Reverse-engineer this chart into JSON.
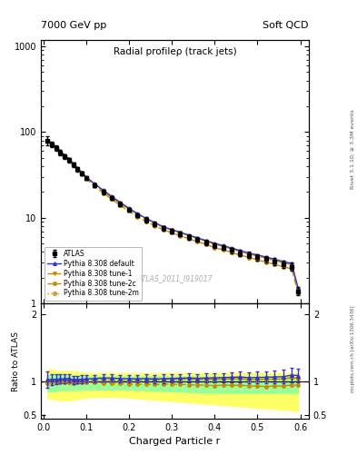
{
  "title_left": "7000 GeV pp",
  "title_right": "Soft QCD",
  "main_title": "Radial profileρ (track jets)",
  "xlabel": "Charged Particle r",
  "ylabel_ratio": "Ratio to ATLAS",
  "right_label_main": "Rivet 3.1.10; ≥ 3.3M events",
  "atlas_ref": "mcplots.cern.ch [arXiv:1306.3436]",
  "watermark": "ATLAS_2011_I919017",
  "x_data": [
    0.01,
    0.02,
    0.03,
    0.04,
    0.05,
    0.06,
    0.07,
    0.08,
    0.09,
    0.1,
    0.12,
    0.14,
    0.16,
    0.18,
    0.2,
    0.22,
    0.24,
    0.26,
    0.28,
    0.3,
    0.32,
    0.34,
    0.36,
    0.38,
    0.4,
    0.42,
    0.44,
    0.46,
    0.48,
    0.5,
    0.52,
    0.54,
    0.56,
    0.58,
    0.595
  ],
  "atlas_y": [
    80,
    72,
    65,
    58,
    52,
    47,
    42,
    37,
    33,
    29,
    24,
    20,
    17,
    14.5,
    12.5,
    10.8,
    9.5,
    8.5,
    7.6,
    7.0,
    6.5,
    6.0,
    5.6,
    5.2,
    4.8,
    4.5,
    4.2,
    3.9,
    3.7,
    3.5,
    3.3,
    3.1,
    2.9,
    2.7,
    1.4
  ],
  "atlas_yerr": [
    10,
    6,
    5,
    4,
    3.5,
    3,
    2.5,
    2,
    2,
    1.5,
    1.2,
    1.0,
    0.9,
    0.8,
    0.7,
    0.6,
    0.6,
    0.5,
    0.5,
    0.4,
    0.4,
    0.4,
    0.35,
    0.35,
    0.3,
    0.3,
    0.3,
    0.3,
    0.3,
    0.3,
    0.3,
    0.3,
    0.3,
    0.3,
    0.15
  ],
  "py_default_y": [
    82,
    74,
    67,
    60,
    54,
    49,
    43,
    38,
    34,
    30,
    25,
    21,
    17.8,
    15.1,
    13.0,
    11.2,
    9.9,
    8.8,
    7.9,
    7.3,
    6.8,
    6.3,
    5.85,
    5.45,
    5.05,
    4.75,
    4.45,
    4.15,
    3.9,
    3.7,
    3.5,
    3.3,
    3.1,
    2.95,
    1.52
  ],
  "py_tune1_y": [
    79,
    72,
    65,
    58,
    52.5,
    47.5,
    42.5,
    37.5,
    33.5,
    29.5,
    24.5,
    20.5,
    17.3,
    14.7,
    12.7,
    11.0,
    9.7,
    8.7,
    7.8,
    7.2,
    6.7,
    6.2,
    5.75,
    5.35,
    4.95,
    4.65,
    4.35,
    4.05,
    3.8,
    3.6,
    3.4,
    3.2,
    3.0,
    2.85,
    1.46
  ],
  "py_tune2c_y": [
    78,
    71,
    64,
    57,
    51,
    46,
    41,
    36.5,
    32.5,
    28.5,
    23.5,
    19.5,
    16.5,
    14.0,
    12.0,
    10.3,
    9.1,
    8.1,
    7.3,
    6.7,
    6.2,
    5.7,
    5.3,
    4.9,
    4.5,
    4.25,
    3.95,
    3.68,
    3.45,
    3.25,
    3.05,
    2.88,
    2.7,
    2.55,
    1.32
  ],
  "py_tune2m_y": [
    80,
    72.5,
    65.5,
    58.5,
    52.5,
    47.5,
    42.5,
    37.5,
    33.5,
    29.5,
    24.5,
    20.5,
    17.3,
    14.7,
    12.7,
    11.0,
    9.7,
    8.7,
    7.8,
    7.2,
    6.7,
    6.2,
    5.75,
    5.35,
    4.95,
    4.65,
    4.35,
    4.05,
    3.8,
    3.6,
    3.4,
    3.2,
    3.0,
    2.85,
    1.46
  ],
  "color_atlas": "#000000",
  "color_default": "#3333cc",
  "color_tune1": "#cc8800",
  "color_tune2c": "#cc8800",
  "color_tune2m": "#cc8800",
  "color_yellow": "#ffff66",
  "color_green": "#99ff99",
  "band_yellow_lo": [
    0.75,
    0.74,
    0.73,
    0.72,
    0.72,
    0.72,
    0.73,
    0.74,
    0.75,
    0.76,
    0.77,
    0.77,
    0.77,
    0.77,
    0.76,
    0.75,
    0.74,
    0.73,
    0.72,
    0.71,
    0.7,
    0.69,
    0.68,
    0.67,
    0.66,
    0.65,
    0.64,
    0.63,
    0.62,
    0.61,
    0.6,
    0.59,
    0.58,
    0.57,
    0.56
  ],
  "band_yellow_hi": [
    1.18,
    1.17,
    1.16,
    1.15,
    1.15,
    1.15,
    1.15,
    1.14,
    1.13,
    1.12,
    1.12,
    1.12,
    1.12,
    1.12,
    1.12,
    1.12,
    1.12,
    1.12,
    1.12,
    1.12,
    1.12,
    1.12,
    1.12,
    1.12,
    1.12,
    1.12,
    1.12,
    1.12,
    1.12,
    1.12,
    1.12,
    1.12,
    1.12,
    1.12,
    1.12
  ],
  "band_green_lo": [
    0.85,
    0.85,
    0.86,
    0.87,
    0.87,
    0.87,
    0.87,
    0.87,
    0.88,
    0.88,
    0.88,
    0.88,
    0.88,
    0.88,
    0.88,
    0.87,
    0.87,
    0.86,
    0.86,
    0.85,
    0.85,
    0.84,
    0.84,
    0.83,
    0.83,
    0.83,
    0.83,
    0.83,
    0.83,
    0.83,
    0.83,
    0.83,
    0.83,
    0.83,
    0.83
  ],
  "band_green_hi": [
    1.09,
    1.09,
    1.09,
    1.09,
    1.09,
    1.08,
    1.08,
    1.08,
    1.07,
    1.07,
    1.07,
    1.07,
    1.07,
    1.07,
    1.07,
    1.07,
    1.07,
    1.07,
    1.07,
    1.07,
    1.07,
    1.07,
    1.07,
    1.07,
    1.07,
    1.07,
    1.07,
    1.07,
    1.07,
    1.07,
    1.07,
    1.07,
    1.07,
    1.07,
    1.07
  ],
  "ylim_main": [
    1.0,
    1200
  ],
  "ylim_ratio": [
    0.45,
    2.15
  ],
  "xlim": [
    -0.005,
    0.62
  ],
  "ratio_yticks": [
    0.5,
    1.0,
    2.0
  ],
  "ratio_ytick_labels": [
    "0.5",
    "1",
    "2"
  ]
}
